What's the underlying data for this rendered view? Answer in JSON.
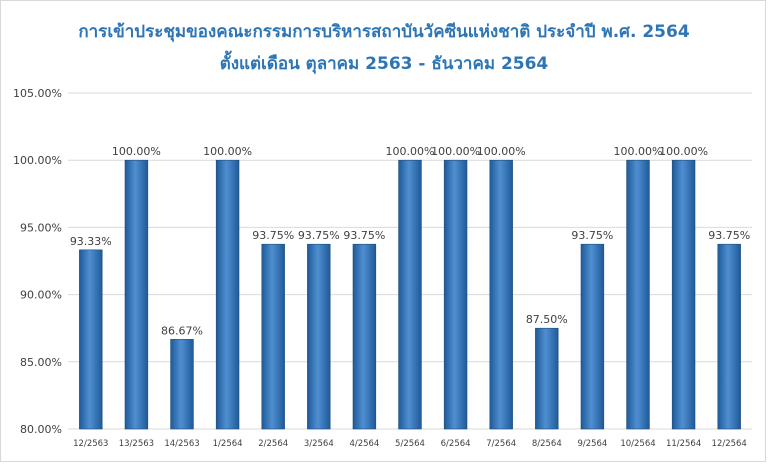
{
  "chart_data": {
    "type": "bar",
    "title": "การเข้าประชุมของคณะกรรมการบริหารสถาบันวัคซีนแห่งชาติ ประจำปี พ.ศ. 2564",
    "subtitle": "ตั้งแต่เดือน ตุลาคม 2563 - ธันวาคม 2564",
    "xlabel": "",
    "ylabel": "",
    "ylim": [
      80,
      105
    ],
    "yticks": [
      "80.00%",
      "85.00%",
      "90.00%",
      "95.00%",
      "100.00%",
      "105.00%"
    ],
    "ytick_values": [
      80,
      85,
      90,
      95,
      100,
      105
    ],
    "grid": true,
    "bar_color": "#2e75b6",
    "categories": [
      "12/2563",
      "13/2563",
      "14/2563",
      "1/2564",
      "2/2564",
      "3/2564",
      "4/2564",
      "5/2564",
      "6/2564",
      "7/2564",
      "8/2564",
      "9/2564",
      "10/2564",
      "11/2564",
      "12/2564"
    ],
    "values": [
      93.33,
      100.0,
      86.67,
      100.0,
      93.75,
      93.75,
      93.75,
      100.0,
      100.0,
      100.0,
      87.5,
      93.75,
      100.0,
      100.0,
      93.75
    ],
    "data_labels": [
      "93.33%",
      "100.00%",
      "86.67%",
      "100.00%",
      "93.75%",
      "93.75%",
      "93.75%",
      "100.00%",
      "100.00%",
      "100.00%",
      "87.50%",
      "93.75%",
      "100.00%",
      "100.00%",
      "93.75%"
    ]
  }
}
